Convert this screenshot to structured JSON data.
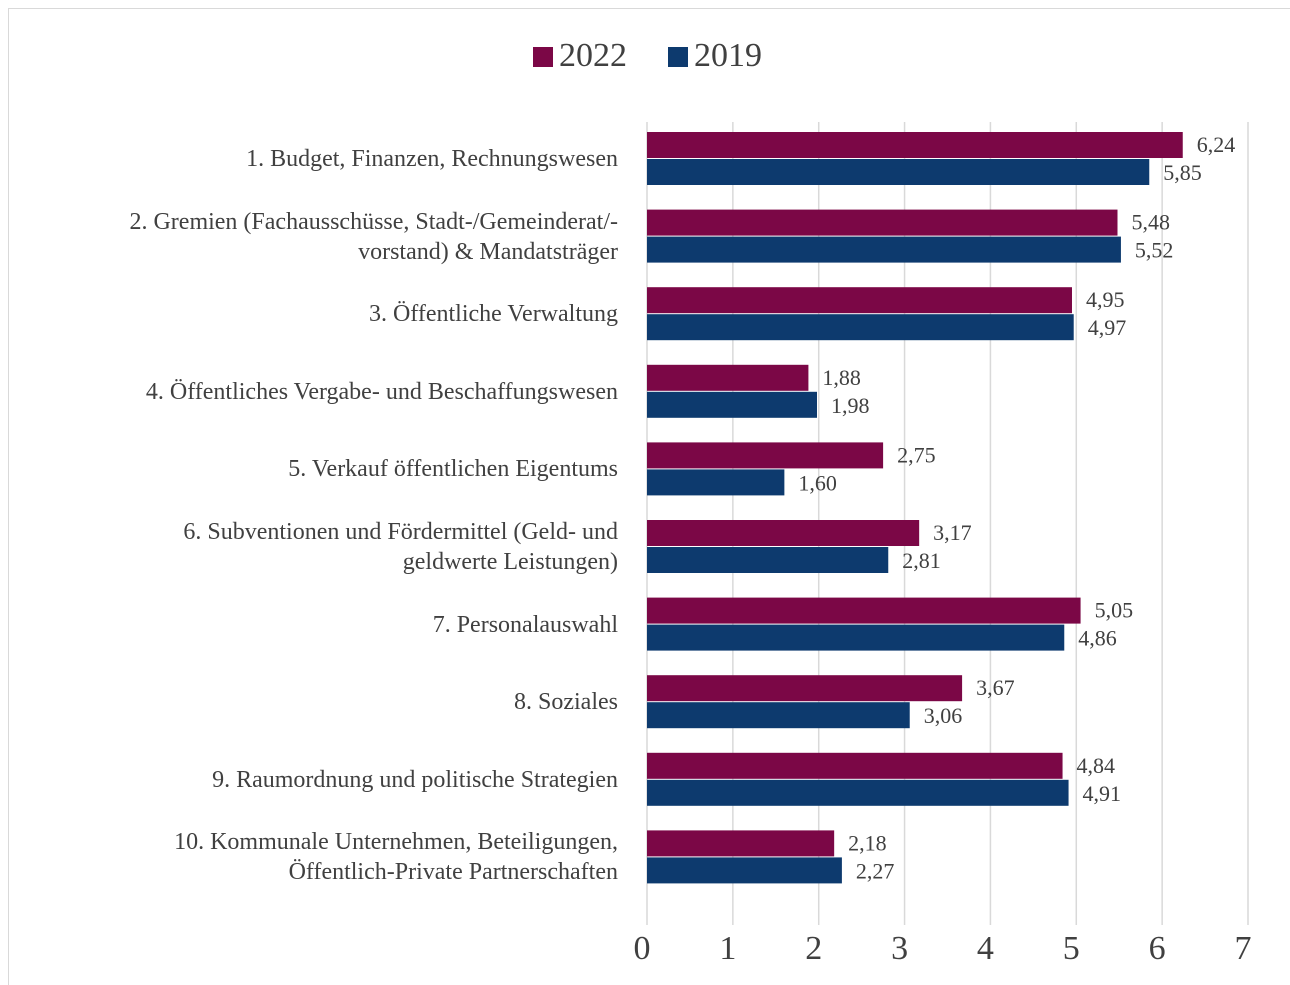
{
  "chart_data": {
    "type": "hbar",
    "categories": [
      "1. Budget, Finanzen, Rechnungswesen",
      "2. Gremien (Fachausschüsse, Stadt-/Gemeinderat/-\nvorstand) & Mandatsträger",
      "3. Öffentliche Verwaltung",
      "4. Öffentliches Vergabe- und Beschaffungswesen",
      "5. Verkauf öffentlichen Eigentums",
      "6. Subventionen und Fördermittel (Geld- und\ngeldwerte Leistungen)",
      "7. Personalauswahl",
      "8. Soziales",
      "9. Raumordnung und politische Strategien",
      "10. Kommunale Unternehmen, Beteiligungen,\nÖffentlich-Private Partnerschaften"
    ],
    "series": [
      {
        "name": "2022",
        "color": "#7b0746",
        "values": [
          6.24,
          5.48,
          4.95,
          1.88,
          2.75,
          3.17,
          5.05,
          3.67,
          4.84,
          2.18
        ],
        "value_labels": [
          "6,24",
          "5,48",
          "4,95",
          "1,88",
          "2,75",
          "3,17",
          "5,05",
          "3,67",
          "4,84",
          "2,18"
        ]
      },
      {
        "name": "2019",
        "color": "#0d3a6e",
        "values": [
          5.85,
          5.52,
          4.97,
          1.98,
          1.6,
          2.81,
          4.86,
          3.06,
          4.91,
          2.27
        ],
        "value_labels": [
          "5,85",
          "5,52",
          "4,97",
          "1,98",
          "1,60",
          "2,81",
          "4,86",
          "3,06",
          "4,91",
          "2,27"
        ]
      }
    ],
    "xlim": [
      0,
      7
    ],
    "xticks": [
      0,
      1,
      2,
      3,
      4,
      5,
      6,
      7
    ],
    "grid": true,
    "legend": "top"
  }
}
